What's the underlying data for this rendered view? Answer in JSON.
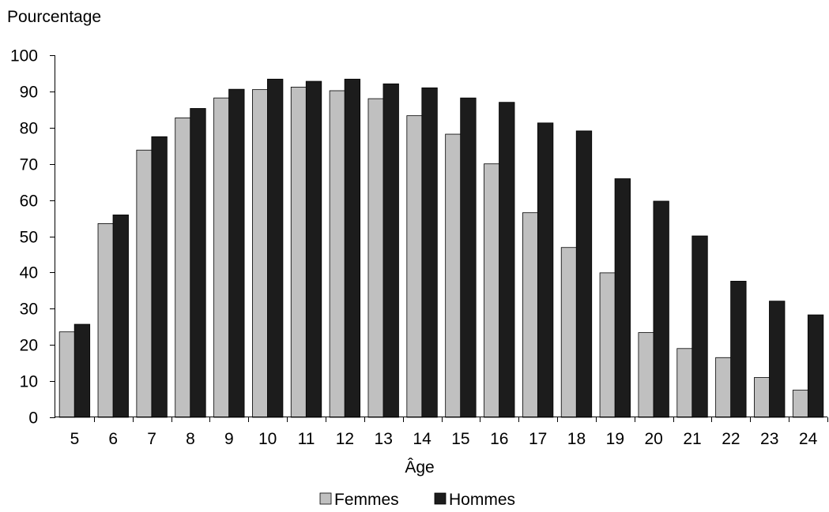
{
  "chart_data": {
    "type": "bar",
    "ylabel": "Pourcentage",
    "xlabel": "Âge",
    "ylim": [
      0,
      100
    ],
    "yticks": [
      0,
      10,
      20,
      30,
      40,
      50,
      60,
      70,
      80,
      90,
      100
    ],
    "categories": [
      "5",
      "6",
      "7",
      "8",
      "9",
      "10",
      "11",
      "12",
      "13",
      "14",
      "15",
      "16",
      "17",
      "18",
      "19",
      "20",
      "21",
      "22",
      "23",
      "24"
    ],
    "series": [
      {
        "name": "Femmes",
        "color": "#c0c0c0",
        "values": [
          23.6,
          53.5,
          73.8,
          82.7,
          88.2,
          90.5,
          91.2,
          90.2,
          88.0,
          83.3,
          78.2,
          70.0,
          56.5,
          46.9,
          39.9,
          23.4,
          19.0,
          16.5,
          11.0,
          7.5
        ]
      },
      {
        "name": "Hommes",
        "color": "#1c1c1c",
        "values": [
          25.7,
          55.9,
          77.5,
          85.3,
          90.6,
          93.4,
          92.8,
          93.4,
          92.1,
          91.0,
          88.2,
          87.0,
          81.3,
          79.1,
          65.9,
          59.7,
          50.1,
          37.6,
          32.1,
          28.3
        ]
      }
    ],
    "grid": false,
    "legend_position": "bottom-center"
  }
}
